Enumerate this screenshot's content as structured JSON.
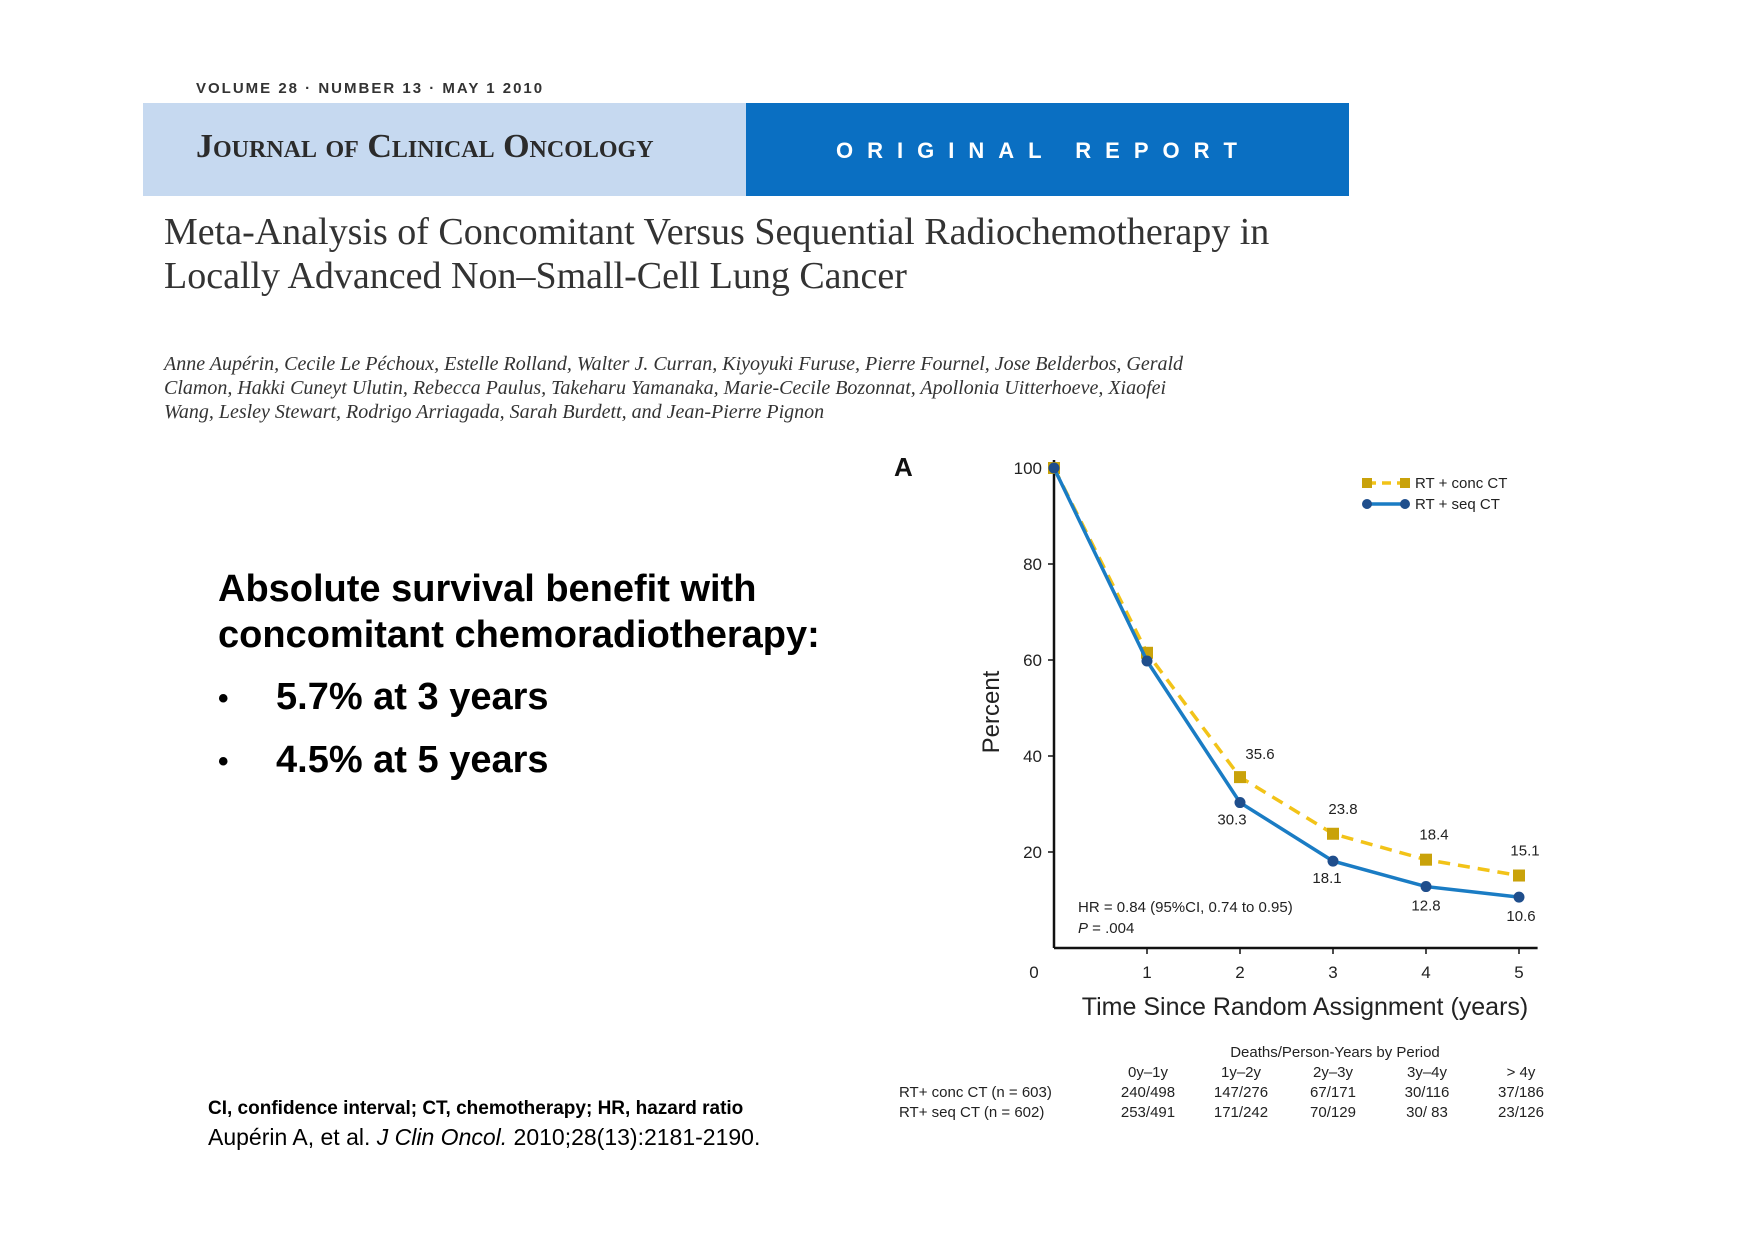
{
  "header": {
    "meta_line": "VOLUME 28 · NUMBER 13 · MAY 1 2010",
    "journal_name": "Journal of Clinical Oncology",
    "report_type": "ORIGINAL REPORT",
    "colors": {
      "banner_light": "#c6d9f0",
      "banner_dark": "#0a6fc2"
    }
  },
  "article": {
    "title": "Meta-Analysis of Concomitant Versus Sequential Radiochemotherapy in Locally Advanced Non–Small-Cell Lung Cancer",
    "authors": "Anne Aupérin, Cecile Le Péchoux, Estelle Rolland, Walter J. Curran, Kiyoyuki Furuse, Pierre Fournel, Jose Belderbos, Gerald Clamon, Hakki Cuneyt Ulutin, Rebecca Paulus, Takeharu Yamanaka, Marie-Cecile Bozonnat, Apollonia Uitterhoeve, Xiaofei Wang, Lesley Stewart, Rodrigo Arriagada, Sarah Burdett, and Jean-Pierre Pignon"
  },
  "summary": {
    "headline": "Absolute survival benefit with concomitant chemoradiotherapy:",
    "bullets": [
      "5.7% at 3 years",
      "4.5% at 5 years"
    ],
    "bullet_symbol": "•"
  },
  "footer": {
    "abbreviations": "CI, confidence interval; CT, chemotherapy; HR, hazard ratio",
    "citation_authors": "Aupérin A, et al. ",
    "citation_journal": "J Clin Oncol.",
    "citation_ref": " 2010;28(13):2181-2190."
  },
  "chart_data": {
    "type": "line",
    "panel_label": "A",
    "ylabel": "Percent",
    "xlabel": "Time Since Random Assignment (years)",
    "x": [
      0,
      1,
      2,
      3,
      4,
      5
    ],
    "x_tick_labels": [
      "0",
      "1",
      "2",
      "3",
      "4",
      "5"
    ],
    "y_ticks": [
      20,
      40,
      60,
      80,
      100
    ],
    "ylim": [
      0,
      100
    ],
    "xlim": [
      0,
      5.2
    ],
    "series": [
      {
        "name": "RT + conc CT",
        "color": "#c9a20a",
        "line_color": "#f2c318",
        "dashed": true,
        "marker": "square",
        "values": [
          100,
          61.5,
          35.6,
          23.8,
          18.4,
          15.1
        ],
        "labels": [
          "",
          "",
          "35.6",
          "23.8",
          "18.4",
          "15.1"
        ]
      },
      {
        "name": "RT + seq CT",
        "color": "#1f4e8c",
        "line_color": "#1a7cc4",
        "dashed": false,
        "marker": "circle",
        "values": [
          100,
          59.8,
          30.3,
          18.1,
          12.8,
          10.6
        ],
        "labels": [
          "",
          "",
          "30.3",
          "18.1",
          "12.8",
          "10.6"
        ]
      }
    ],
    "annotation_hr": "HR = 0.84 (95%CI, 0.74 to 0.95)",
    "annotation_p_italic": "P",
    "annotation_p_rest": " = .004",
    "risk_table": {
      "title": "Deaths/Person-Years by Period",
      "periods": [
        "0y–1y",
        "1y–2y",
        "2y–3y",
        "3y–4y",
        "> 4y"
      ],
      "rows": [
        {
          "label": "RT+ conc CT (n = 603)",
          "values": [
            "240/498",
            "147/276",
            "67/171",
            "30/116",
            "37/186"
          ]
        },
        {
          "label": "RT+ seq CT (n = 602)",
          "values": [
            "253/491",
            "171/242",
            "70/129",
            "30/ 83",
            "23/126"
          ]
        }
      ]
    }
  }
}
